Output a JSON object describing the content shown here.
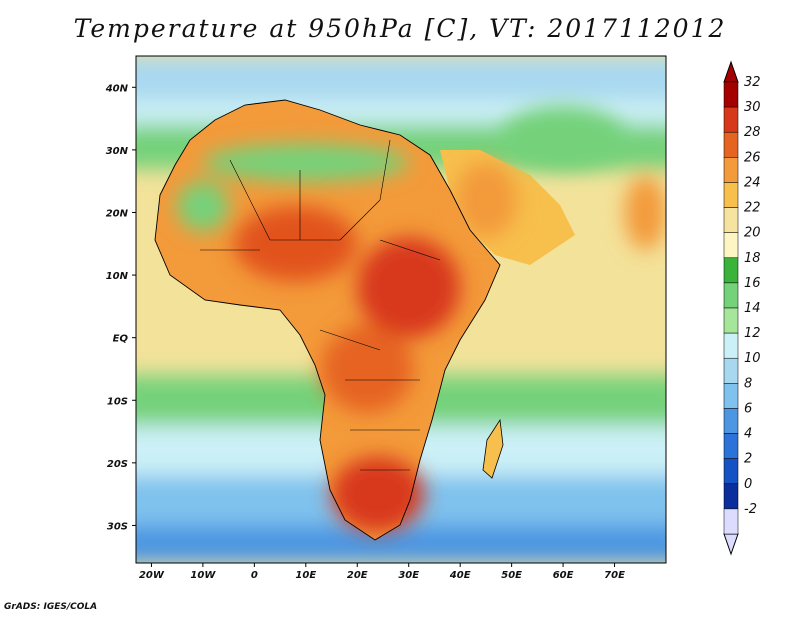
{
  "title": "Temperature at 950hPa [C], VT: 2017112012",
  "credit": "GrADS: IGES/COLA",
  "map": {
    "lon_range": [
      -23,
      80
    ],
    "lat_range": [
      -36,
      45
    ],
    "lat_ticks": [
      {
        "value": 40,
        "label": "40N"
      },
      {
        "value": 30,
        "label": "30N"
      },
      {
        "value": 20,
        "label": "20N"
      },
      {
        "value": 10,
        "label": "10N"
      },
      {
        "value": 0,
        "label": "EQ"
      },
      {
        "value": -10,
        "label": "10S"
      },
      {
        "value": -20,
        "label": "20S"
      },
      {
        "value": -30,
        "label": "30S"
      }
    ],
    "lon_ticks": [
      {
        "value": -20,
        "label": "20W"
      },
      {
        "value": -10,
        "label": "10W"
      },
      {
        "value": 0,
        "label": "0"
      },
      {
        "value": 10,
        "label": "10E"
      },
      {
        "value": 20,
        "label": "20E"
      },
      {
        "value": 30,
        "label": "30E"
      },
      {
        "value": 40,
        "label": "40E"
      },
      {
        "value": 50,
        "label": "50E"
      },
      {
        "value": 60,
        "label": "60E"
      },
      {
        "value": 70,
        "label": "70E"
      }
    ],
    "ocean_color": "#f3e29a",
    "bands": [
      {
        "lat_max": 45,
        "lat_min": 38,
        "color": "#a8d8f0"
      },
      {
        "lat_max": 38,
        "lat_min": 34,
        "color": "#ccf0f7"
      },
      {
        "lat_max": 34,
        "lat_min": 27,
        "color": "#74d27a"
      },
      {
        "lat_max": -6,
        "lat_min": -14,
        "color": "#74d27a"
      },
      {
        "lat_max": -14,
        "lat_min": -22,
        "color": "#ccf0f7"
      },
      {
        "lat_max": -22,
        "lat_min": -30,
        "color": "#7fc2ee"
      },
      {
        "lat_max": -30,
        "lat_min": -36,
        "color": "#4c96e2"
      }
    ],
    "land_color": "#f39a3a",
    "hot_regions": [
      {
        "name": "sahel-west",
        "lon": 8,
        "lat": 15,
        "rx": 12,
        "ry": 6,
        "color": "#e2531f"
      },
      {
        "name": "east-africa",
        "lon": 30,
        "lat": 8,
        "rx": 10,
        "ry": 8,
        "color": "#d8381a"
      },
      {
        "name": "congo",
        "lon": 22,
        "lat": -5,
        "rx": 9,
        "ry": 7,
        "color": "#e66422"
      },
      {
        "name": "southern-africa",
        "lon": 24,
        "lat": -25,
        "rx": 9,
        "ry": 6,
        "color": "#d8381a"
      },
      {
        "name": "arabia",
        "lon": 45,
        "lat": 22,
        "rx": 6,
        "ry": 6,
        "color": "#f39a3a"
      },
      {
        "name": "india",
        "lon": 76,
        "lat": 20,
        "rx": 4,
        "ry": 6,
        "color": "#f39a3a"
      }
    ],
    "green_regions": [
      {
        "name": "sahara-north",
        "lon": 10,
        "lat": 28,
        "rx": 20,
        "ry": 3,
        "color": "#74d27a"
      },
      {
        "name": "mauritania",
        "lon": -10,
        "lat": 21,
        "rx": 5,
        "ry": 4,
        "color": "#74d27a"
      },
      {
        "name": "iran",
        "lon": 60,
        "lat": 32,
        "rx": 12,
        "ry": 5,
        "color": "#74d27a"
      }
    ]
  },
  "colorbar": {
    "labels": [
      "32",
      "30",
      "28",
      "26",
      "24",
      "22",
      "20",
      "18",
      "16",
      "14",
      "12",
      "10",
      "8",
      "6",
      "4",
      "2",
      "0",
      "-2"
    ],
    "colors": [
      "#a50000",
      "#d8381a",
      "#e66422",
      "#f39a3a",
      "#f7bf4c",
      "#f7e3a0",
      "#fdf5c4",
      "#39b339",
      "#74d27a",
      "#a6e69a",
      "#ccf0f7",
      "#a8d8f0",
      "#7fc2ee",
      "#4c96e2",
      "#2b73d8",
      "#1552c4",
      "#0a2f9c",
      "#dcdcff"
    ]
  }
}
